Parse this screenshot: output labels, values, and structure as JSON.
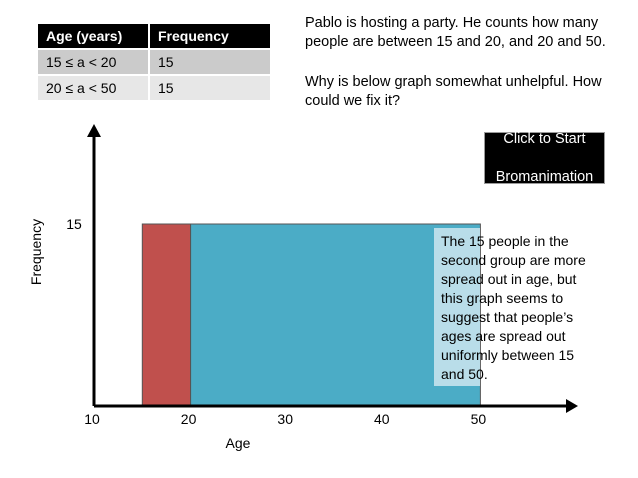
{
  "table": {
    "headers": [
      "Age (years)",
      "Frequency"
    ],
    "rows": [
      [
        "15 ≤ a < 20",
        "15"
      ],
      [
        "20 ≤ a < 50",
        "15"
      ]
    ]
  },
  "prompt": "Pablo is hosting a party. He counts how many people are between 15 and 20, and 20 and 50.",
  "question": "Why is below graph somewhat unhelpful. How could we fix it?",
  "button": {
    "line1": "Click to Start",
    "line2": "Bromanimation"
  },
  "callout": "The 15 people in the second group are more spread out in age, but this graph seems to suggest that people’s ages are spread out uniformly between 15 and 50.",
  "colors": {
    "bar_1": "#c0504d",
    "bar_2": "#4bacc6",
    "callout_bg": "#b9dde9"
  },
  "chart_data": {
    "type": "bar",
    "title": "",
    "xlabel": "Age",
    "ylabel": "Frequency",
    "xlim": [
      10,
      60
    ],
    "ylim": [
      0,
      15
    ],
    "x_ticks": [
      10,
      20,
      30,
      40,
      50
    ],
    "y_ticks": [
      15
    ],
    "bars": [
      {
        "x_start": 15,
        "x_end": 20,
        "value": 15,
        "color": "#c0504d"
      },
      {
        "x_start": 20,
        "x_end": 50,
        "value": 15,
        "color": "#4bacc6"
      }
    ],
    "grid": false
  }
}
